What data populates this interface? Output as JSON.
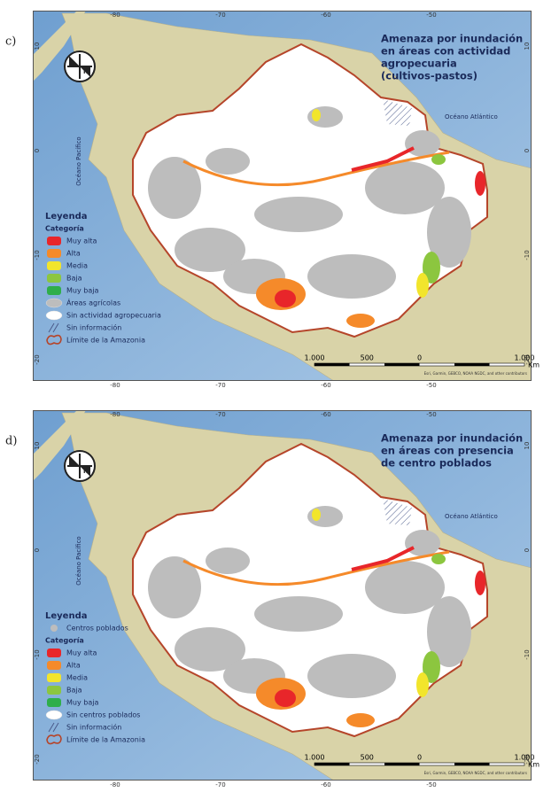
{
  "panels": [
    {
      "label": "c)",
      "title_lines": [
        "Amenaza por inundación",
        "en áreas con actividad",
        "agropecuaria",
        "(cultivos-pastos)"
      ],
      "ocean_labels": {
        "atlantic": "Océano Atlántico",
        "pacific": "Océano Pacífico"
      },
      "legend": {
        "title": "Leyenda",
        "entries": [
          {
            "text": "Categoría"
          },
          {
            "label": "Muy alta",
            "color": "#e8262a",
            "swatch": "blob"
          },
          {
            "label": "Alta",
            "color": "#f58a2a",
            "swatch": "blob"
          },
          {
            "label": "Media",
            "color": "#f2e52c",
            "swatch": "blob"
          },
          {
            "label": "Baja",
            "color": "#8cc63f",
            "swatch": "blob"
          },
          {
            "label": "Muy baja",
            "color": "#2fae4a",
            "swatch": "blob"
          },
          {
            "label": "Áreas agrícolas",
            "color": "#bdbdbd",
            "swatch": "ellipse"
          },
          {
            "label": "Sin actividad agropecuaria",
            "color": "#ffffff",
            "swatch": "ellipse"
          },
          {
            "label": "Sin información",
            "color": "#4a5a8a",
            "swatch": "hatch"
          },
          {
            "label": "Límite de la Amazonia",
            "color": "#b5452a",
            "swatch": "outline"
          }
        ]
      },
      "scale": {
        "labels": [
          "1.000",
          "500",
          "0",
          "1.000"
        ],
        "unit": "Km"
      },
      "lon_ticks": [
        -80,
        -70,
        -60,
        -50
      ],
      "lat_ticks": [
        10,
        0,
        -10,
        -20
      ],
      "attribution": "Esri, Garmin, GEBCO, NOAA NGDC, and other contributors"
    },
    {
      "label": "d)",
      "title_lines": [
        "Amenaza por inundación",
        "en áreas con presencia",
        "de centro poblados"
      ],
      "ocean_labels": {
        "atlantic": "Océano Atlántico",
        "pacific": "Océano Pacífico"
      },
      "legend": {
        "title": "Leyenda",
        "entries": [
          {
            "label": "Centros poblados",
            "color": "#bdbdbd",
            "swatch": "dot"
          },
          {
            "text": "Categoría"
          },
          {
            "label": "Muy alta",
            "color": "#e8262a",
            "swatch": "blob"
          },
          {
            "label": "Alta",
            "color": "#f58a2a",
            "swatch": "blob"
          },
          {
            "label": "Media",
            "color": "#f2e52c",
            "swatch": "blob"
          },
          {
            "label": "Baja",
            "color": "#8cc63f",
            "swatch": "blob"
          },
          {
            "label": "Muy baja",
            "color": "#2fae4a",
            "swatch": "blob"
          },
          {
            "label": "Sin centros poblados",
            "color": "#ffffff",
            "swatch": "ellipse"
          },
          {
            "label": "Sin información",
            "color": "#4a5a8a",
            "swatch": "hatch"
          },
          {
            "label": "Límite de la Amazonia",
            "color": "#b5452a",
            "swatch": "outline"
          }
        ]
      },
      "scale": {
        "labels": [
          "1.000",
          "500",
          "0",
          "1.000"
        ],
        "unit": "Km"
      },
      "lon_ticks": [
        -80,
        -70,
        -60,
        -50
      ],
      "lat_ticks": [
        10,
        0,
        -10,
        -20
      ],
      "attribution": "Esri, Garmin, GEBCO, NOAA NGDC, and other contributors"
    }
  ]
}
